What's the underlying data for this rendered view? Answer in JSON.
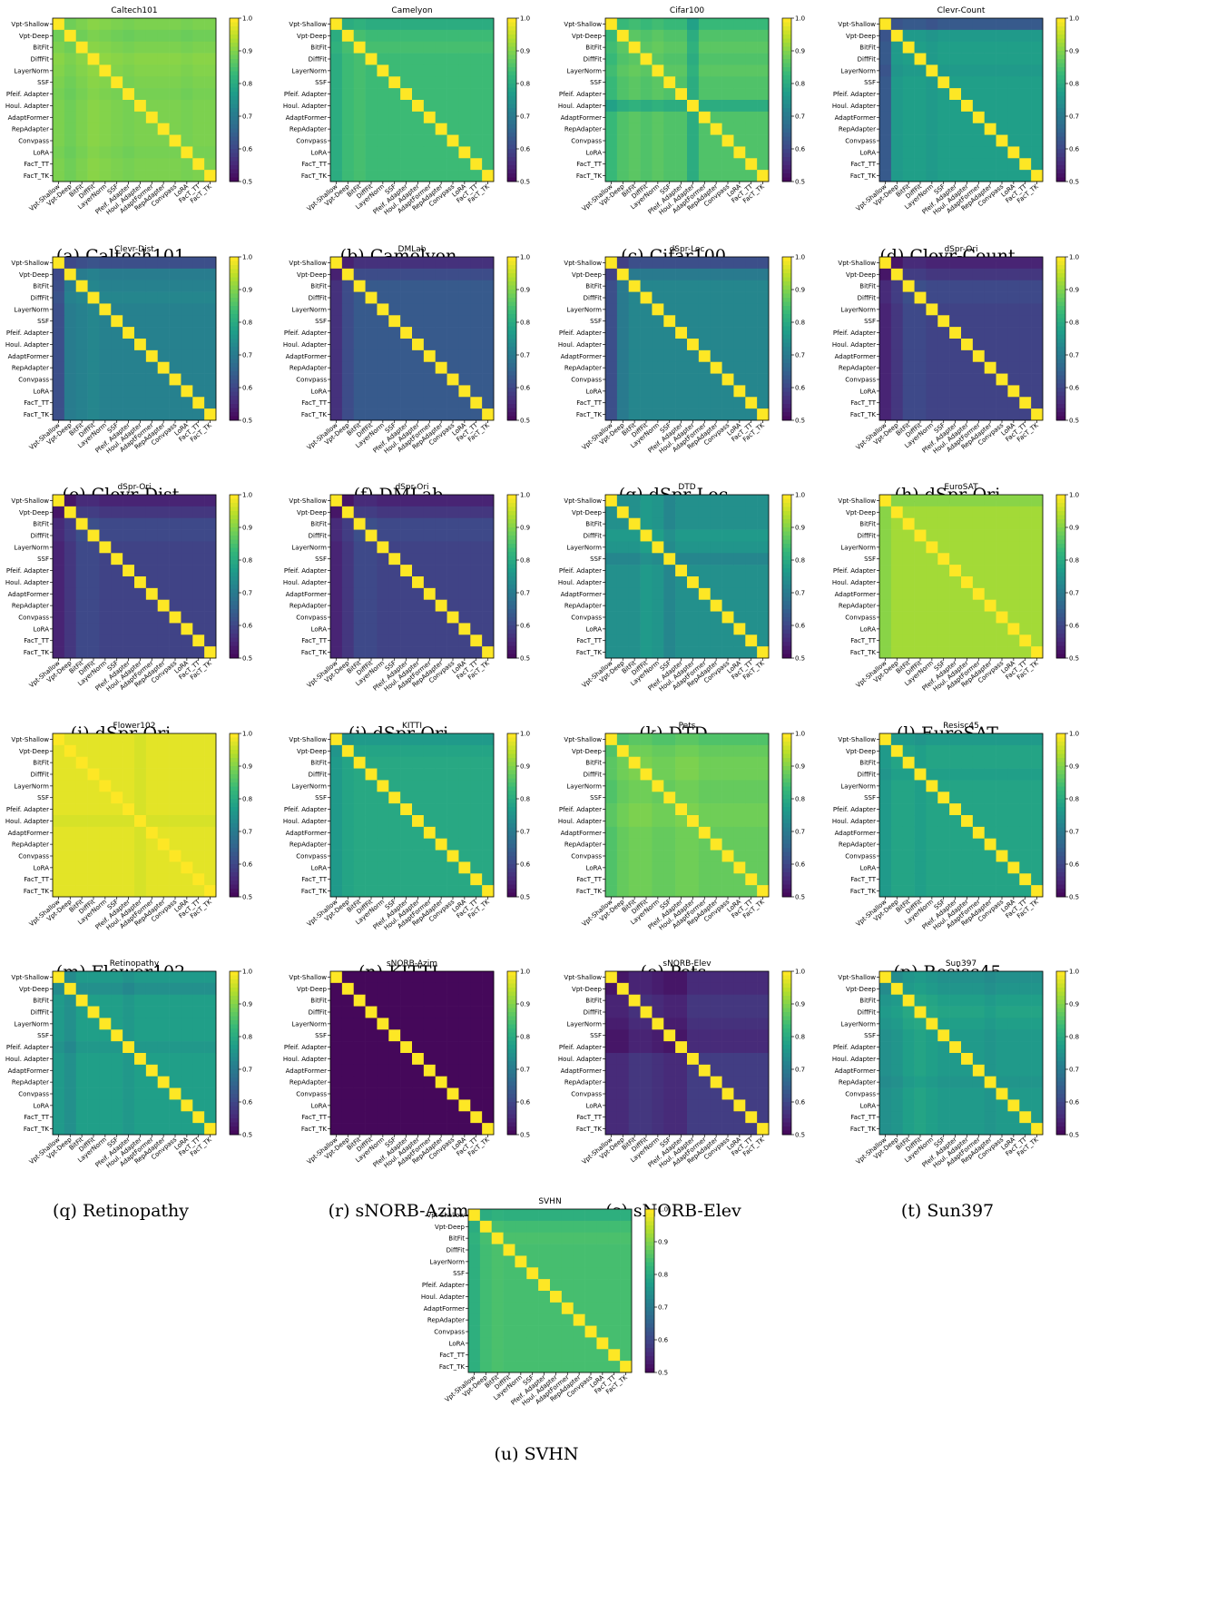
{
  "figure": {
    "row_labels": [
      "Vpt-Shallow",
      "Vpt-Deep",
      "BitFit",
      "DiffFit",
      "LayerNorm",
      "SSF",
      "Pfeif. Adapter",
      "Houl. Adapter",
      "AdaptFormer",
      "RepAdapter",
      "Convpass",
      "LoRA",
      "FacT_TT",
      "FacT_TK"
    ],
    "col_labels": [
      "Vpt-Shallow",
      "Vpt-Deep",
      "BitFit",
      "DiffFit",
      "LayerNorm",
      "SSF",
      "Pfeif. Adapter",
      "Houl. Adapter",
      "AdaptFormer",
      "RepAdapter",
      "Convpass",
      "LoRA",
      "FacT_TT",
      "FacT_TK"
    ],
    "colorbar_ticks": [
      "0.5",
      "0.6",
      "0.7",
      "0.8",
      "0.9",
      "1.0"
    ],
    "colormap": "viridis"
  },
  "chart_data": [
    {
      "type": "heatmap",
      "title": "Caltech101",
      "caption": "(a) Caltech101",
      "vmin": 0.5,
      "vmax": 1.0,
      "base": 0.9,
      "row_off": [
        0,
        -0.02,
        0,
        0.02,
        0.01,
        0,
        -0.01,
        0,
        0,
        0,
        0,
        -0.01,
        0,
        0
      ],
      "col_off": [
        0,
        -0.02,
        0,
        0.02,
        0.01,
        0,
        -0.01,
        0,
        0,
        0,
        0,
        -0.01,
        0,
        0
      ]
    },
    {
      "type": "heatmap",
      "title": "Camelyon",
      "caption": "(b) Camelyon",
      "vmin": 0.5,
      "vmax": 1.0,
      "base": 0.84,
      "row_off": [
        -0.06,
        0,
        0.02,
        0,
        0,
        0,
        0,
        0,
        0,
        0,
        0,
        0,
        0,
        0
      ],
      "col_off": [
        -0.06,
        0,
        0.02,
        0,
        0,
        0,
        0,
        0,
        0,
        0,
        0,
        0,
        0,
        0
      ]
    },
    {
      "type": "heatmap",
      "title": "Cifar100",
      "caption": "(c) Cifar100",
      "vmin": 0.5,
      "vmax": 1.0,
      "base": 0.86,
      "row_off": [
        -0.05,
        0,
        0.02,
        0,
        0.02,
        0,
        0,
        -0.1,
        0,
        0,
        0,
        0,
        0,
        0
      ],
      "col_off": [
        -0.05,
        0,
        0.02,
        0,
        0.02,
        0,
        0,
        -0.1,
        0,
        0,
        0,
        0,
        0,
        0
      ]
    },
    {
      "type": "heatmap",
      "title": "Clevr-Count",
      "caption": "(d) Clevr-Count",
      "vmin": 0.5,
      "vmax": 1.0,
      "base": 0.78,
      "row_off": [
        -0.28,
        -0.02,
        0,
        0,
        -0.02,
        0,
        0,
        0,
        0,
        0,
        0,
        0,
        0,
        0
      ],
      "col_off": [
        -0.28,
        -0.02,
        0,
        0,
        -0.02,
        0,
        0,
        0,
        0,
        0,
        0,
        0,
        0,
        0
      ]
    },
    {
      "type": "heatmap",
      "title": "Clevr-Dist",
      "caption": "(e) Clevr-Dist",
      "vmin": 0.5,
      "vmax": 1.0,
      "base": 0.72,
      "row_off": [
        -0.2,
        -0.02,
        0,
        0.02,
        0,
        0,
        0,
        0,
        0,
        0,
        0,
        0,
        0,
        0
      ],
      "col_off": [
        -0.2,
        -0.02,
        0,
        0.02,
        0,
        0,
        0,
        0,
        0,
        0,
        0,
        0,
        0,
        0
      ]
    },
    {
      "type": "heatmap",
      "title": "DMLab",
      "caption": "(f) DMLab",
      "vmin": 0.5,
      "vmax": 1.0,
      "base": 0.64,
      "row_off": [
        -0.14,
        -0.05,
        0,
        0,
        0,
        0,
        0,
        0,
        0,
        0,
        0,
        0,
        0,
        0
      ],
      "col_off": [
        -0.14,
        -0.05,
        0,
        0,
        0,
        0,
        0,
        0,
        0,
        0,
        0,
        0,
        0,
        0
      ]
    },
    {
      "type": "heatmap",
      "title": "dSpr-Loc",
      "caption": "(g) dSpr-Loc",
      "vmin": 0.5,
      "vmax": 1.0,
      "base": 0.73,
      "row_off": [
        -0.22,
        -0.05,
        0,
        0,
        0,
        0,
        0,
        0,
        0,
        0,
        0,
        0,
        0,
        0
      ],
      "col_off": [
        -0.22,
        -0.05,
        0,
        0,
        0,
        0,
        0,
        0,
        0,
        0,
        0,
        0,
        0,
        0
      ]
    },
    {
      "type": "heatmap",
      "title": "dSpr-Ori",
      "caption": "(h) dSpr-Ori",
      "vmin": 0.5,
      "vmax": 1.0,
      "base": 0.6,
      "row_off": [
        -0.1,
        -0.04,
        0.02,
        0.02,
        0,
        0,
        0,
        0,
        0,
        0,
        0,
        0,
        0,
        0
      ],
      "col_off": [
        -0.1,
        -0.04,
        0.02,
        0.02,
        0,
        0,
        0,
        0,
        0,
        0,
        0,
        0,
        0,
        0
      ]
    },
    {
      "type": "heatmap",
      "title": "dSpr-Ori",
      "caption": "(i) dSpr-Ori",
      "vmin": 0.5,
      "vmax": 1.0,
      "base": 0.6,
      "row_off": [
        -0.1,
        -0.04,
        0.02,
        0.02,
        0,
        0,
        0,
        0,
        0,
        0,
        0,
        0,
        0,
        0
      ],
      "col_off": [
        -0.1,
        -0.04,
        0.02,
        0.02,
        0,
        0,
        0,
        0,
        0,
        0,
        0,
        0,
        0,
        0
      ]
    },
    {
      "type": "heatmap",
      "title": "dSpr-Ori",
      "caption": "(j) dSpr-Ori",
      "vmin": 0.5,
      "vmax": 1.0,
      "base": 0.6,
      "row_off": [
        -0.1,
        -0.04,
        0.02,
        0.02,
        0,
        0,
        0,
        0,
        0,
        0,
        0,
        0,
        0,
        0
      ],
      "col_off": [
        -0.1,
        -0.04,
        0.02,
        0.02,
        0,
        0,
        0,
        0,
        0,
        0,
        0,
        0,
        0,
        0
      ]
    },
    {
      "type": "heatmap",
      "title": "DTD",
      "caption": "(k) DTD",
      "vmin": 0.5,
      "vmax": 1.0,
      "base": 0.75,
      "row_off": [
        0,
        0,
        0,
        0.04,
        0.02,
        -0.04,
        0,
        0,
        0,
        0,
        0,
        0,
        0,
        0
      ],
      "col_off": [
        0,
        0,
        0,
        0.04,
        0.02,
        -0.04,
        0,
        0,
        0,
        0,
        0,
        0,
        0,
        0
      ]
    },
    {
      "type": "heatmap",
      "title": "EuroSAT",
      "caption": "(l) EuroSAT",
      "vmin": 0.5,
      "vmax": 1.0,
      "base": 0.93,
      "row_off": [
        -0.04,
        0,
        0,
        0,
        0,
        0,
        0,
        0,
        0,
        0,
        0,
        0,
        0,
        0
      ],
      "col_off": [
        -0.04,
        0,
        0,
        0,
        0,
        0,
        0,
        0,
        0,
        0,
        0,
        0,
        0,
        0
      ]
    },
    {
      "type": "heatmap",
      "title": "Flower102",
      "caption": "(m) Flower102",
      "vmin": 0.5,
      "vmax": 1.0,
      "base": 0.98,
      "row_off": [
        0,
        0,
        0,
        0,
        0,
        0,
        0,
        -0.02,
        0,
        0,
        0,
        0,
        0,
        0
      ],
      "col_off": [
        0,
        0,
        0,
        0,
        0,
        0,
        0,
        -0.02,
        0,
        0,
        0,
        0,
        0,
        0
      ]
    },
    {
      "type": "heatmap",
      "title": "KITTI",
      "caption": "(n) KITTI",
      "vmin": 0.5,
      "vmax": 1.0,
      "base": 0.8,
      "row_off": [
        -0.06,
        -0.02,
        0,
        0,
        0,
        0,
        0,
        0,
        0,
        0,
        0,
        0,
        0,
        0
      ],
      "col_off": [
        -0.06,
        -0.02,
        0,
        0,
        0,
        0,
        0,
        0,
        0,
        0,
        0,
        0,
        0,
        0
      ]
    },
    {
      "type": "heatmap",
      "title": "Pets",
      "caption": "(o) Pets",
      "vmin": 0.5,
      "vmax": 1.0,
      "base": 0.88,
      "row_off": [
        -0.04,
        0,
        0.02,
        0.02,
        0,
        0,
        0.02,
        0.02,
        0,
        0,
        0,
        0,
        0,
        0
      ],
      "col_off": [
        -0.04,
        0,
        0.02,
        0.02,
        0,
        0,
        0.02,
        0.02,
        0,
        0,
        0,
        0,
        0,
        0
      ]
    },
    {
      "type": "heatmap",
      "title": "Resisc45",
      "caption": "(p) Resisc45",
      "vmin": 0.5,
      "vmax": 1.0,
      "base": 0.79,
      "row_off": [
        -0.04,
        0,
        0,
        -0.02,
        0,
        0,
        0,
        0,
        0,
        0,
        0,
        0,
        0,
        0
      ],
      "col_off": [
        -0.04,
        0,
        0,
        -0.02,
        0,
        0,
        0,
        0,
        0,
        0,
        0,
        0,
        0,
        0
      ]
    },
    {
      "type": "heatmap",
      "title": "Retinopathy",
      "caption": "(q) Retinopathy",
      "vmin": 0.5,
      "vmax": 1.0,
      "base": 0.78,
      "row_off": [
        -0.02,
        -0.06,
        0,
        0,
        0,
        0,
        -0.03,
        0,
        0,
        0,
        0,
        0,
        0,
        0
      ],
      "col_off": [
        -0.02,
        -0.06,
        0,
        0,
        0,
        0,
        -0.03,
        0,
        0,
        0,
        0,
        0,
        0,
        0
      ]
    },
    {
      "type": "heatmap",
      "title": "sNORB-Azim",
      "caption": "(r) sNORB-Azim",
      "vmin": 0.5,
      "vmax": 1.0,
      "base": 0.51,
      "row_off": [
        0,
        0,
        0,
        0,
        0,
        0,
        0,
        0,
        0,
        0,
        0,
        0,
        0,
        0
      ],
      "col_off": [
        0,
        0,
        0,
        0,
        0,
        0,
        0,
        0,
        0,
        0,
        0,
        0,
        0,
        0
      ]
    },
    {
      "type": "heatmap",
      "title": "sNORB-Elev",
      "caption": "(s) sNORB-Elev",
      "vmin": 0.5,
      "vmax": 1.0,
      "base": 0.53,
      "row_off": [
        0,
        0,
        0.04,
        0.04,
        0.02,
        0,
        0,
        0.06,
        0.06,
        0.06,
        0.06,
        0.06,
        0.06,
        0.06
      ],
      "col_off": [
        0,
        0,
        0.04,
        0.04,
        0.02,
        0,
        0,
        0.06,
        0.06,
        0.06,
        0.06,
        0.06,
        0.06,
        0.06
      ]
    },
    {
      "type": "heatmap",
      "title": "Sun397",
      "caption": "(t) Sun397",
      "vmin": 0.5,
      "vmax": 1.0,
      "base": 0.77,
      "row_off": [
        -0.04,
        -0.02,
        0.02,
        0.04,
        0.02,
        0,
        0,
        0,
        0,
        -0.02,
        0,
        0,
        0,
        0
      ],
      "col_off": [
        -0.04,
        -0.02,
        0.02,
        0.04,
        0.02,
        0,
        0,
        0,
        0,
        -0.02,
        0,
        0,
        0,
        0
      ]
    },
    {
      "type": "heatmap",
      "title": "SVHN",
      "caption": "(u) SVHN",
      "vmin": 0.5,
      "vmax": 1.0,
      "base": 0.85,
      "row_off": [
        -0.07,
        -0.01,
        0.01,
        0,
        0,
        0,
        0,
        0,
        0,
        0,
        0,
        0,
        0,
        0
      ],
      "col_off": [
        -0.07,
        -0.01,
        0.01,
        0,
        0,
        0,
        0,
        0,
        0,
        0,
        0,
        0,
        0,
        0
      ]
    }
  ]
}
